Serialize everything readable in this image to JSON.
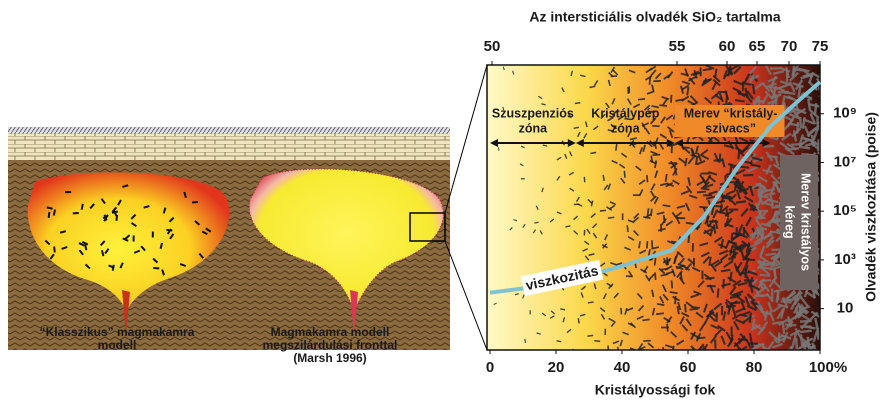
{
  "figure": {
    "left_panels": [
      {
        "caption": [
          "“Klasszikus” magmakamra",
          "modell"
        ]
      },
      {
        "caption": [
          "Magmakamra modell",
          "megszilárdulási fronttal",
          "(Marsh 1996)"
        ]
      }
    ]
  },
  "chart_data": {
    "type": "line",
    "x2_title": "Az intersticiális olvadék SiO₂ tartalma",
    "x_title": "Kristályossági fok",
    "y_title": "Olvadék viszkozitása (poise)",
    "xlim": [
      0,
      100
    ],
    "xticks": [
      0,
      20,
      40,
      60,
      80,
      {
        "value": 100,
        "label": "100%"
      }
    ],
    "x2ticks": [
      50,
      55,
      60,
      65,
      70,
      75
    ],
    "ylim": [
      0.2,
      100000000000
    ],
    "log_y": true,
    "yticks": [
      10,
      {
        "value": 1000,
        "label": "10³"
      },
      {
        "value": 100000,
        "label": "10⁵"
      },
      {
        "value": 10000000,
        "label": "10⁷"
      },
      {
        "value": 1000000000,
        "label": "10⁹"
      }
    ],
    "x": [
      0,
      20,
      40,
      55,
      65,
      75,
      85,
      93,
      100
    ],
    "series": [
      {
        "name": "viszkozitás",
        "color": "#7ec3d3",
        "values": [
          45,
          100,
          560,
          2500,
          63000,
          6300000,
          300000000,
          3000000000,
          20000000000
        ]
      }
    ],
    "zones": [
      {
        "label": [
          "Szuszpenziós",
          "zóna"
        ],
        "from": 0,
        "to": 26
      },
      {
        "label": [
          "Kristálypép",
          "zóna"
        ],
        "from": 26,
        "to": 56
      },
      {
        "label": [
          "Merev “kristály-",
          "szivacs”"
        ],
        "from": 56,
        "to": 85
      }
    ],
    "crust_label": [
      "Merev kristályos",
      "kéreg"
    ]
  }
}
